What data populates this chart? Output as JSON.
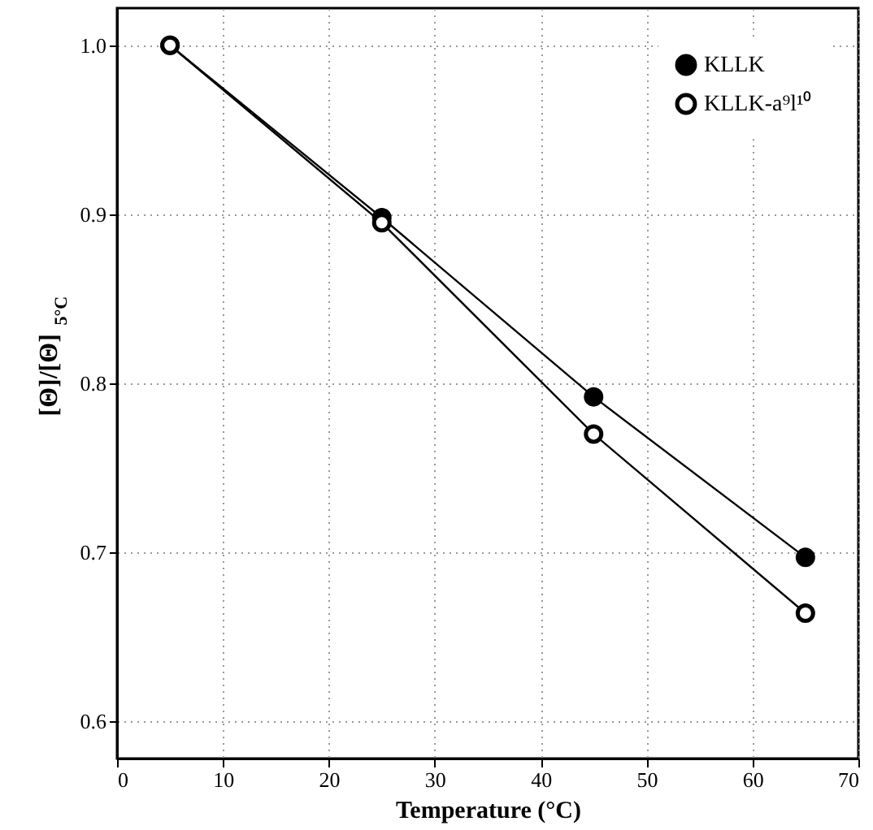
{
  "chart_data": {
    "type": "line",
    "xlabel": "Temperature (°C)",
    "ylabel": "[Θ]/[Θ]$_{5°C}$",
    "x": [
      5,
      25,
      45,
      65
    ],
    "series": [
      {
        "name": "KLLK",
        "color": "#000000",
        "values": [
          1.0,
          0.898,
          0.792,
          0.697
        ]
      },
      {
        "name": "KLLK-a⁹l¹⁰",
        "color": "#000000",
        "values": [
          1.0,
          0.895,
          0.77,
          0.664
        ]
      }
    ],
    "xlim": [
      0,
      70
    ],
    "xticks": [
      0,
      10,
      20,
      30,
      40,
      50,
      60,
      70
    ],
    "ylim": [
      0.578,
      1.022
    ],
    "yticks": [
      0.6,
      0.7,
      0.8,
      0.9,
      {
        "value": 1.0,
        "label": "1.0"
      }
    ],
    "grid": true,
    "legend": "top right",
    "marker": "circle",
    "line_style": "solid"
  }
}
